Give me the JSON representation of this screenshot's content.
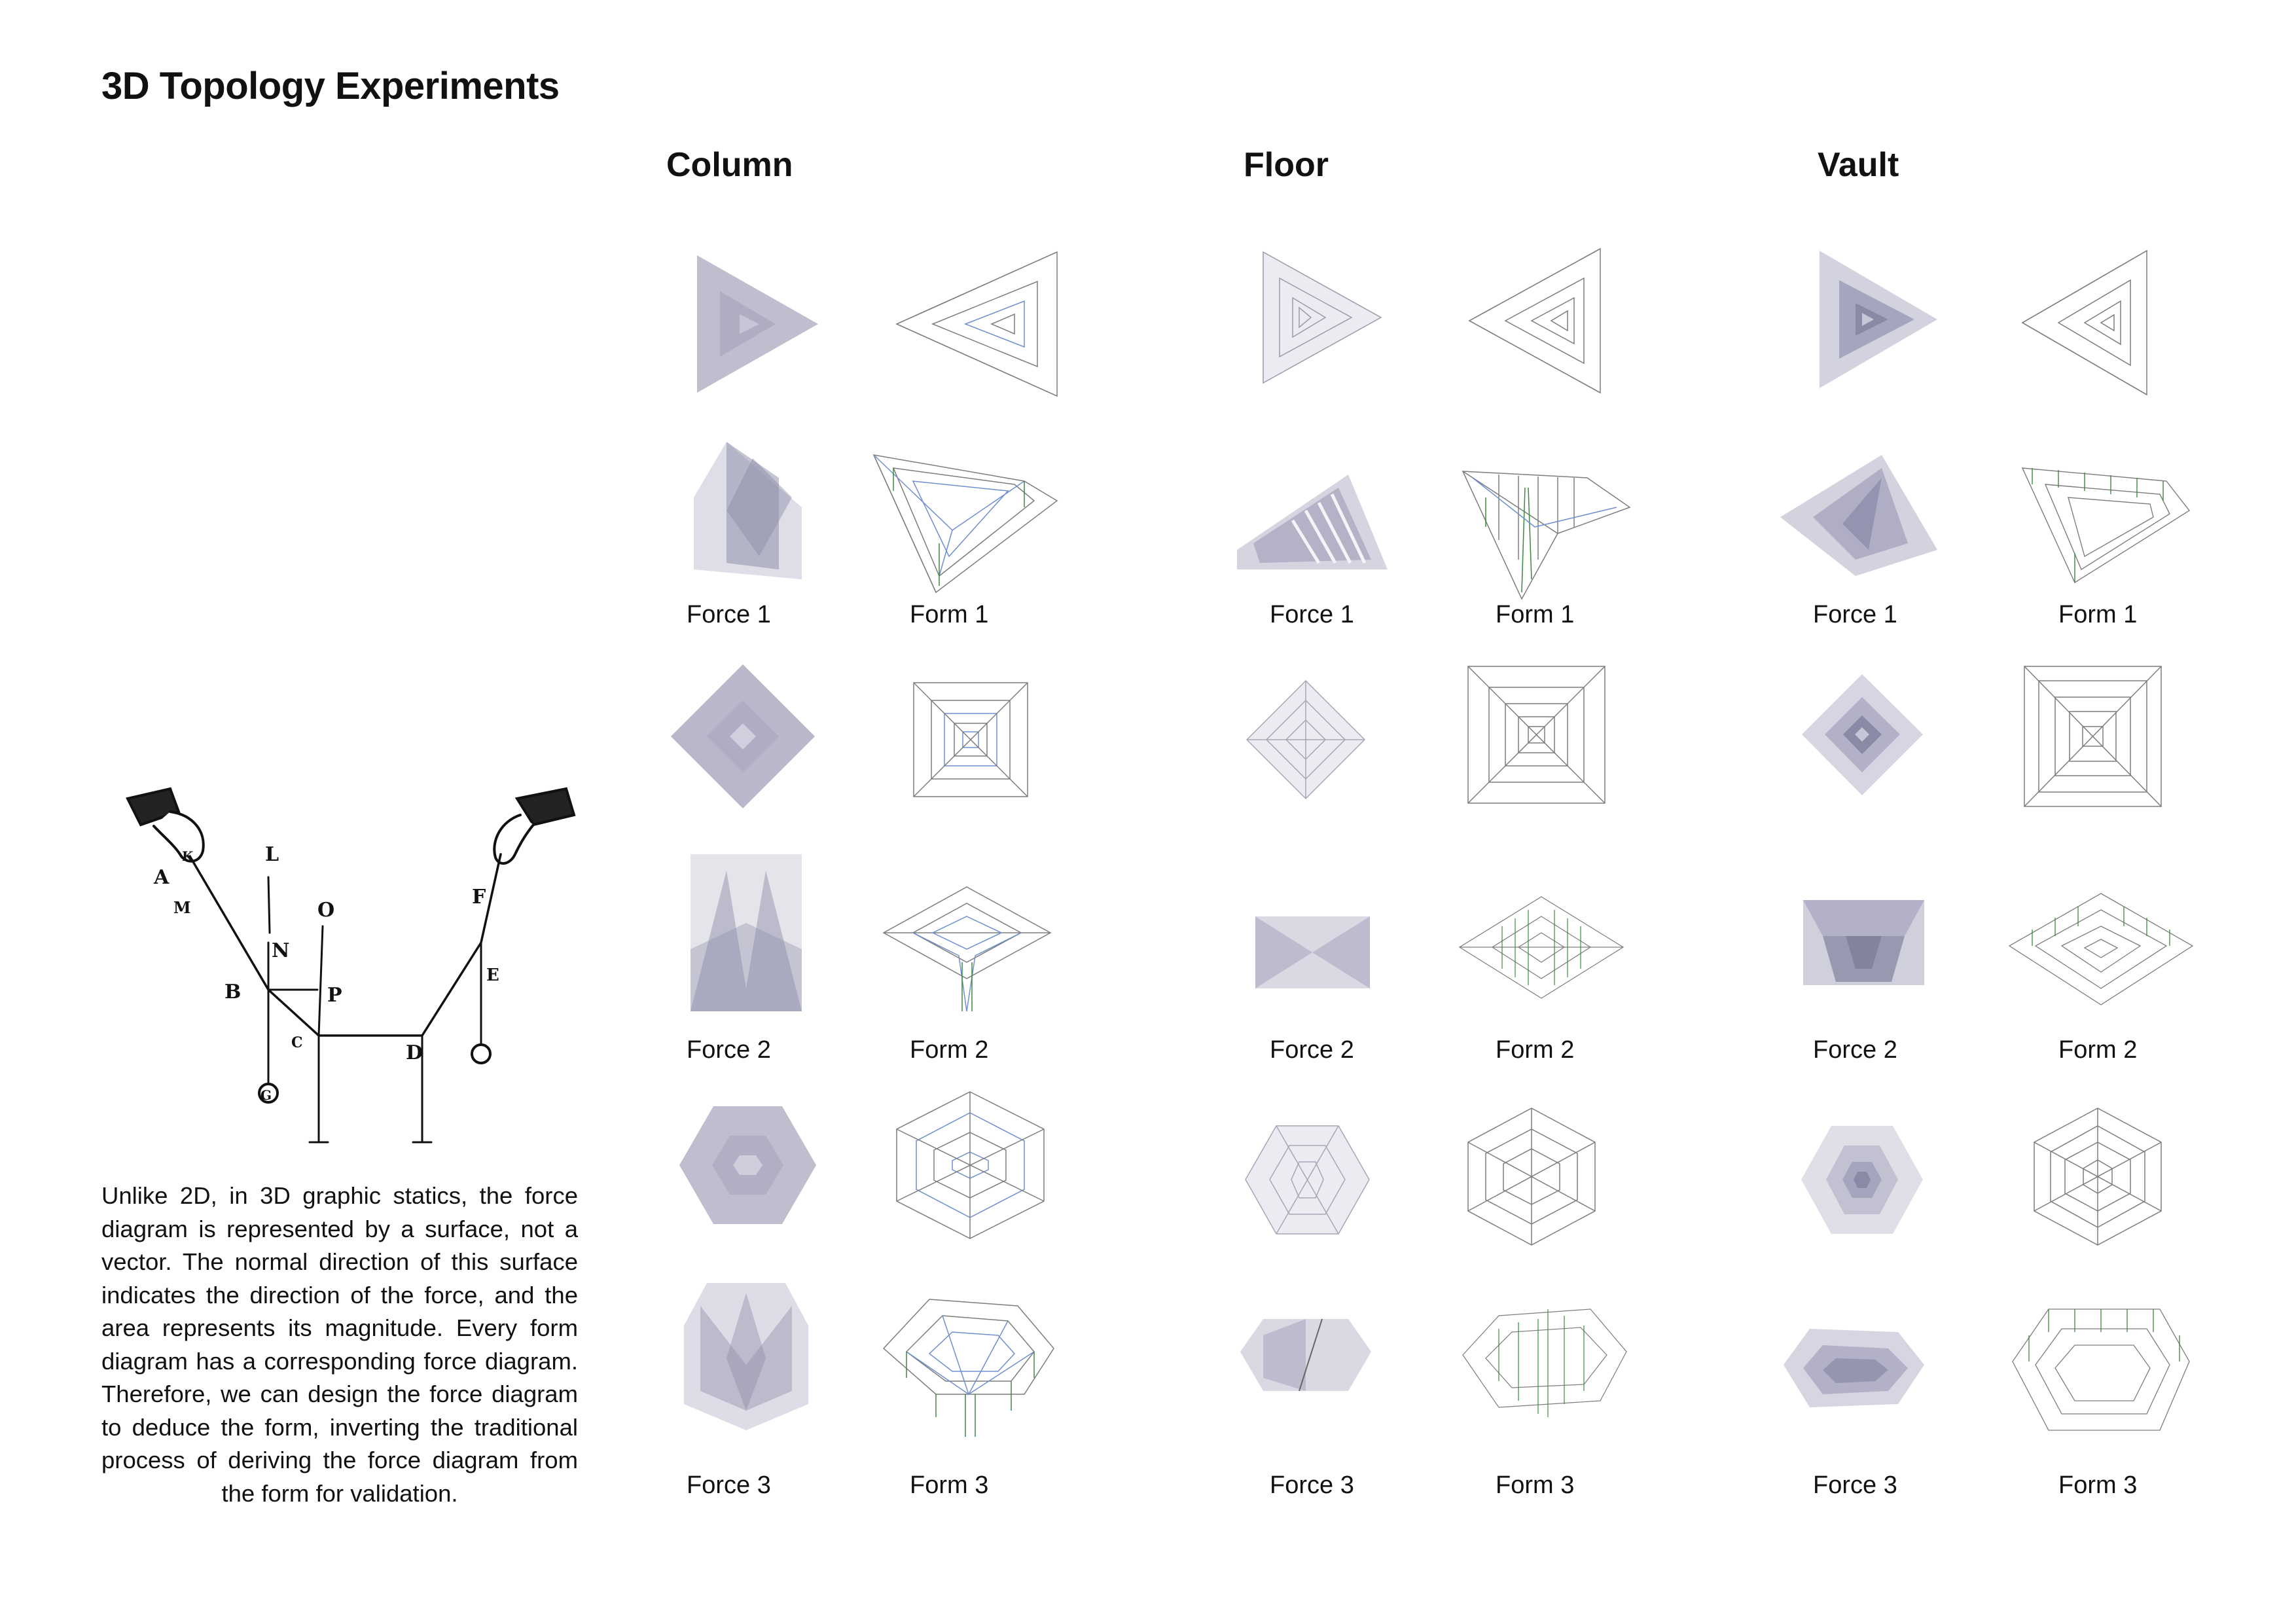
{
  "title": "3D Topology Experiments",
  "paragraph": "Unlike 2D, in 3D graphic statics, the force diagram is represented by a surface, not a vector. The normal direction of this surface indicates the direction of the force, and the area represents its magnitude. Every form diagram has a corresponding force diagram. Therefore, we can design the force diagram to deduce the form, inverting the traditional process of deriving the force diagram from the form for validation.",
  "engraving_labels": [
    "L",
    "O",
    "A",
    "K",
    "M",
    "N",
    "B",
    "P",
    "C",
    "D",
    "E",
    "F",
    "G"
  ],
  "columns": [
    {
      "heading": "Column",
      "rows": [
        {
          "force_label": "Force 1",
          "form_label": "Form 1",
          "shape": "triangle"
        },
        {
          "force_label": "Force 2",
          "form_label": "Form 2",
          "shape": "square"
        },
        {
          "force_label": "Force 3",
          "form_label": "Form 3",
          "shape": "hexagon"
        }
      ]
    },
    {
      "heading": "Floor",
      "rows": [
        {
          "force_label": "Force 1",
          "form_label": "Form 1",
          "shape": "triangle"
        },
        {
          "force_label": "Force 2",
          "form_label": "Form 2",
          "shape": "square"
        },
        {
          "force_label": "Force 3",
          "form_label": "Form 3",
          "shape": "hexagon"
        }
      ]
    },
    {
      "heading": "Vault",
      "rows": [
        {
          "force_label": "Force 1",
          "form_label": "Form 1",
          "shape": "triangle"
        },
        {
          "force_label": "Force 2",
          "form_label": "Form 2",
          "shape": "square"
        },
        {
          "force_label": "Force 3",
          "form_label": "Form 3",
          "shape": "hexagon"
        }
      ]
    }
  ],
  "colors": {
    "force_fill": "#8a89a6",
    "form_line": "#7d7d7d",
    "form_blue": "#6f8fd0",
    "form_green": "#3c8a3c"
  }
}
